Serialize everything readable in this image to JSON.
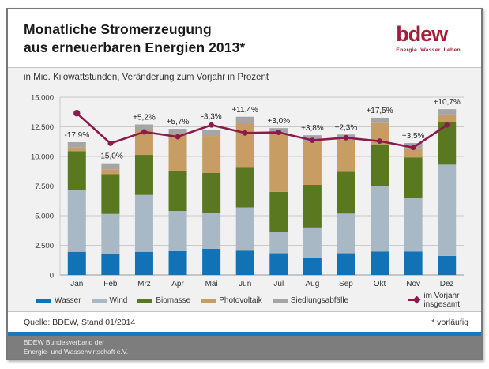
{
  "header": {
    "title_line1": "Monatliche Stromerzeugung",
    "title_line2": "aus erneuerbaren Energien 2013*",
    "subtitle": "in Mio. Kilowattstunden, Veränderung zum Vorjahr in Prozent",
    "logo": {
      "word": "bdew",
      "tagline": "Energie. Wasser. Leben.",
      "color": "#A41E35"
    }
  },
  "chart_data": {
    "type": "bar",
    "stacked": true,
    "title": "Monatliche Stromerzeugung aus erneuerbaren Energien 2013*",
    "ylabel": "Mio. Kilowattstunden",
    "categories": [
      "Jan",
      "Feb",
      "Mrz",
      "Apr",
      "Mai",
      "Jun",
      "Jul",
      "Aug",
      "Sep",
      "Okt",
      "Nov",
      "Dez"
    ],
    "series": [
      {
        "name": "Wasser",
        "color": "#1173B6",
        "values": [
          1950,
          1750,
          1950,
          2000,
          2200,
          2050,
          1830,
          1430,
          1830,
          1980,
          1980,
          1610
        ]
      },
      {
        "name": "Wind",
        "color": "#A9B8C5",
        "values": [
          5200,
          3400,
          4800,
          3400,
          3000,
          3650,
          1820,
          2580,
          3350,
          5550,
          4520,
          7700
        ]
      },
      {
        "name": "Biomasse",
        "color": "#5A7820",
        "values": [
          3300,
          3350,
          3380,
          3380,
          3400,
          3420,
          3360,
          3590,
          3530,
          3490,
          3420,
          3570
        ]
      },
      {
        "name": "Photovoltaik",
        "color": "#C79D63",
        "values": [
          300,
          420,
          2100,
          3100,
          3130,
          3680,
          4890,
          3680,
          2700,
          1800,
          770,
          660
        ]
      },
      {
        "name": "Siedlungsabfälle",
        "color": "#A5A5A5",
        "values": [
          450,
          500,
          470,
          450,
          500,
          550,
          490,
          510,
          440,
          450,
          440,
          450
        ]
      }
    ],
    "line_series": {
      "name": "im Vorjahr insgesamt",
      "color": "#8C1B4B",
      "values": [
        13650,
        11100,
        12070,
        11660,
        12650,
        11980,
        12030,
        11360,
        11580,
        11290,
        10750,
        12650
      ]
    },
    "change_labels": [
      "-17,9%",
      "-15,0%",
      "+5,2%",
      "+5,7%",
      "-3,3%",
      "+11,4%",
      "+3,0%",
      "+3,8%",
      "+2,3%",
      "+17,5%",
      "+3,5%",
      "+10,7%"
    ],
    "ylim": [
      0,
      15000
    ],
    "ytick_step": 2500,
    "ytick_labels": [
      "0",
      "2.500",
      "5.000",
      "7.500",
      "10.000",
      "12.500",
      "15.000"
    ],
    "grid": true,
    "legend_position": "bottom"
  },
  "footer": {
    "source": "Quelle: BDEW, Stand 01/2014",
    "note": "* vorläufig",
    "org_line1": "BDEW Bundesverband der",
    "org_line2": "Energie- und Wasserwirtschaft e.V."
  },
  "colors": {
    "section_bg": "#F1F1F1",
    "gridline": "#C9C9C9",
    "zero_axis": "#999999",
    "border": "#787878",
    "blue_strip": "#1878BE",
    "footer_bar": "#7D7D7D"
  }
}
